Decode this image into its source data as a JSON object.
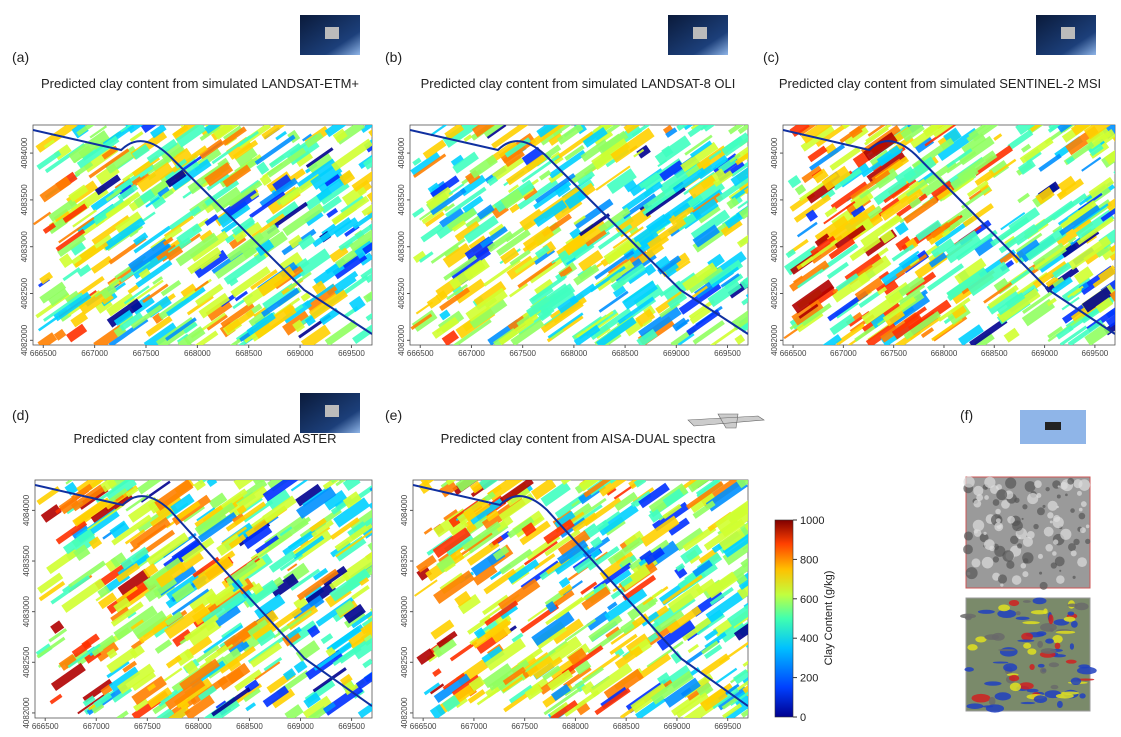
{
  "panels": [
    {
      "label": "(a)",
      "title": "Predicted clay content from simulated LANDSAT-ETM+"
    },
    {
      "label": "(b)",
      "title": "Predicted clay content from simulated LANDSAT-8 OLI"
    },
    {
      "label": "(c)",
      "title": "Predicted clay content from simulated SENTINEL-2 MSI"
    },
    {
      "label": "(d)",
      "title": "Predicted clay content from simulated ASTER"
    },
    {
      "label": "(e)",
      "title": "Predicted clay content from AISA-DUAL spectra"
    },
    {
      "label": "(f)"
    }
  ],
  "axes": {
    "xlim": [
      666400,
      669700
    ],
    "xticks": [
      666500,
      667000,
      667500,
      668000,
      668500,
      669000,
      669500
    ],
    "ylim": [
      4081950,
      4084300
    ],
    "yticks": [
      4082000,
      4082500,
      4083000,
      4083500,
      4084000
    ]
  },
  "colorbar": {
    "label": "Clay Content (g/kg)",
    "lim": [
      0,
      1000
    ],
    "ticks": [
      0,
      200,
      400,
      600,
      800,
      1000
    ]
  }
}
